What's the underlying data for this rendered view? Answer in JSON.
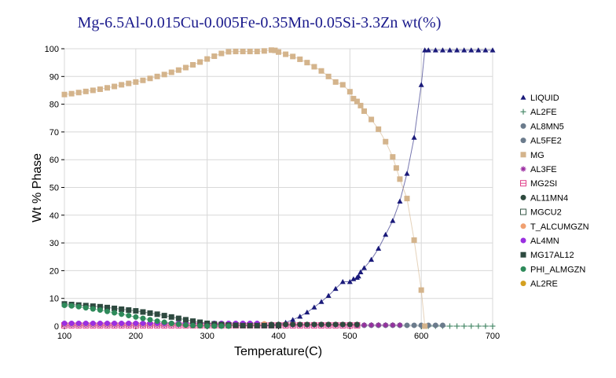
{
  "chart_data": {
    "type": "line",
    "title": "Mg-6.5Al-0.015Cu-0.005Fe-0.35Mn-0.05Si-3.3Zn wt(%)",
    "xlabel": "Temperature(C)",
    "ylabel": "Wt % Phase",
    "xlim": [
      100,
      700
    ],
    "ylim": [
      0,
      100
    ],
    "xticks": [
      100,
      200,
      300,
      400,
      500,
      600,
      700
    ],
    "yticks": [
      0,
      10,
      20,
      30,
      40,
      50,
      60,
      70,
      80,
      90,
      100
    ],
    "grid": true,
    "legend_position": "right",
    "series": [
      {
        "name": "LIQUID",
        "color": "#1a1a7a",
        "marker": "triangle",
        "x": [
          380,
          390,
          400,
          410,
          420,
          430,
          440,
          450,
          460,
          470,
          480,
          490,
          500,
          505,
          510,
          512,
          515,
          520,
          530,
          540,
          550,
          560,
          570,
          580,
          590,
          600,
          605,
          610,
          620,
          630,
          640,
          650,
          660,
          670,
          680,
          690,
          700
        ],
        "y": [
          0,
          0.3,
          0.7,
          1.3,
          2.3,
          3.5,
          5,
          6.8,
          8.8,
          11,
          13.5,
          16,
          16,
          17,
          17.5,
          18,
          19.5,
          21,
          24,
          28,
          33,
          38,
          45,
          55,
          68,
          87,
          99.5,
          99.5,
          99.5,
          99.5,
          99.5,
          99.5,
          99.5,
          99.5,
          99.5,
          99.5,
          99.5
        ]
      },
      {
        "name": "AL2FE",
        "color": "#4a8a6a",
        "marker": "plus",
        "x": [
          600,
          610,
          620,
          630,
          640,
          650,
          660,
          670,
          680,
          690,
          700
        ],
        "y": [
          0,
          0,
          0,
          0,
          0,
          0,
          0,
          0,
          0,
          0,
          0
        ]
      },
      {
        "name": "AL8MN5",
        "color": "#6b7b8c",
        "marker": "circle",
        "x": [
          510,
          520,
          530,
          540,
          550,
          560,
          570,
          580,
          590,
          600,
          610,
          620,
          630
        ],
        "y": [
          0.3,
          0.3,
          0.3,
          0.3,
          0.3,
          0.3,
          0.3,
          0.3,
          0.3,
          0.3,
          0.3,
          0.3,
          0.3
        ]
      },
      {
        "name": "AL5FE2",
        "color": "#6b7b8c",
        "marker": "circle",
        "x": [],
        "y": []
      },
      {
        "name": "MG",
        "color": "#d4b48c",
        "marker": "square",
        "x": [
          100,
          110,
          120,
          130,
          140,
          150,
          160,
          170,
          180,
          190,
          200,
          210,
          220,
          230,
          240,
          250,
          260,
          270,
          280,
          290,
          300,
          310,
          320,
          330,
          340,
          350,
          360,
          370,
          380,
          390,
          395,
          400,
          410,
          420,
          430,
          440,
          450,
          460,
          470,
          480,
          490,
          500,
          505,
          510,
          515,
          520,
          530,
          540,
          550,
          560,
          565,
          570,
          580,
          590,
          600,
          605
        ],
        "y": [
          83.5,
          83.8,
          84.2,
          84.6,
          85,
          85.4,
          85.9,
          86.4,
          87,
          87.5,
          88,
          88.6,
          89.3,
          90,
          90.7,
          91.5,
          92.3,
          93.2,
          94.2,
          95.2,
          96.3,
          97.3,
          98.3,
          98.9,
          99,
          99,
          99,
          99,
          99.2,
          99.5,
          99.4,
          98.8,
          98,
          97.2,
          96.2,
          95,
          93.5,
          92,
          90,
          88,
          87,
          84.5,
          82,
          81,
          79.5,
          77.5,
          74.5,
          71,
          66.5,
          61,
          57,
          53,
          46,
          31,
          13,
          0
        ]
      },
      {
        "name": "AL3FE",
        "color": "#9a2aa0",
        "marker": "asterisk",
        "x": [
          100,
          110,
          120,
          130,
          140,
          150,
          160,
          170,
          180,
          190,
          200,
          210,
          220,
          230,
          240,
          250,
          260,
          270,
          280,
          290,
          300,
          310,
          320,
          330,
          340,
          350,
          360,
          370,
          380,
          390,
          400,
          410,
          420,
          430,
          440,
          450,
          460,
          470,
          480,
          490,
          500,
          510,
          520,
          530,
          540,
          550,
          560,
          570
        ],
        "y": [
          0.4,
          0.4,
          0.4,
          0.4,
          0.4,
          0.4,
          0.4,
          0.4,
          0.4,
          0.4,
          0.4,
          0.4,
          0.4,
          0.4,
          0.4,
          0.4,
          0.4,
          0.4,
          0.4,
          0.4,
          0.4,
          0.4,
          0.4,
          0.4,
          0.4,
          0.4,
          0.4,
          0.4,
          0.4,
          0.4,
          0.4,
          0.4,
          0.4,
          0.4,
          0.4,
          0.4,
          0.4,
          0.4,
          0.4,
          0.4,
          0.4,
          0.4,
          0.4,
          0.4,
          0.4,
          0.4,
          0.4,
          0.4
        ]
      },
      {
        "name": "MG2SI",
        "color": "#e0408a",
        "marker": "square-open-cross",
        "x": [
          100,
          110,
          120,
          130,
          140,
          150,
          160,
          170,
          180,
          190,
          200,
          210,
          220,
          230,
          240,
          250,
          260,
          270,
          280,
          290,
          300,
          310,
          320,
          330,
          340,
          350,
          360,
          370,
          380,
          390,
          400,
          410,
          420,
          430,
          440,
          450,
          460,
          470,
          480,
          490,
          500,
          510
        ],
        "y": [
          0.3,
          0.3,
          0.3,
          0.3,
          0.3,
          0.3,
          0.3,
          0.3,
          0.3,
          0.3,
          0.3,
          0.3,
          0.3,
          0.3,
          0.3,
          0.3,
          0.3,
          0.3,
          0.3,
          0.3,
          0.3,
          0.3,
          0.3,
          0.3,
          0.3,
          0.3,
          0.3,
          0.3,
          0.3,
          0.3,
          0.3,
          0.3,
          0.3,
          0.3,
          0.3,
          0.3,
          0.3,
          0.3,
          0.3,
          0.3,
          0.3,
          0.3
        ]
      },
      {
        "name": "AL11MN4",
        "color": "#2e4a3e",
        "marker": "circle",
        "x": [
          390,
          400,
          410,
          420,
          430,
          440,
          450,
          460,
          470,
          480,
          490,
          500,
          510
        ],
        "y": [
          0.6,
          0.6,
          0.6,
          0.6,
          0.6,
          0.6,
          0.6,
          0.6,
          0.6,
          0.6,
          0.6,
          0.6,
          0.6
        ]
      },
      {
        "name": "MGCU2",
        "color": "#3a5a4a",
        "marker": "square-open",
        "x": [],
        "y": []
      },
      {
        "name": "T_ALCUMGZN",
        "color": "#f0a070",
        "marker": "circle",
        "x": [
          100,
          110,
          120,
          130,
          140,
          150,
          160,
          170,
          180,
          190,
          200,
          210,
          220,
          230,
          240,
          250,
          260,
          270,
          280,
          290,
          300,
          310,
          320,
          330,
          340,
          350,
          360,
          370,
          380
        ],
        "y": [
          0.8,
          0.8,
          0.8,
          0.8,
          0.8,
          0.8,
          0.8,
          0.8,
          0.8,
          0.8,
          0.8,
          0.8,
          0.8,
          0.8,
          0.8,
          0.8,
          0.8,
          0.8,
          0.8,
          0.8,
          0.8,
          0.8,
          0.8,
          0.8,
          0.8,
          0.8,
          0.8,
          0.8,
          0.8
        ]
      },
      {
        "name": "AL4MN",
        "color": "#9a30e0",
        "marker": "circle",
        "x": [
          100,
          110,
          120,
          130,
          140,
          150,
          160,
          170,
          180,
          190,
          200,
          210,
          220,
          230,
          240,
          250,
          260,
          270,
          280,
          290,
          300,
          310,
          320,
          330,
          340,
          350,
          360,
          370
        ],
        "y": [
          1,
          1,
          1,
          1,
          1,
          1,
          1,
          1,
          1,
          1,
          1,
          1,
          1,
          1,
          1,
          1,
          1,
          1,
          1,
          1,
          1,
          1,
          1,
          1,
          1,
          1,
          1,
          1
        ]
      },
      {
        "name": "MG17AL12",
        "color": "#2e4a40",
        "marker": "square",
        "x": [
          100,
          110,
          120,
          130,
          140,
          150,
          160,
          170,
          180,
          190,
          200,
          210,
          220,
          230,
          240,
          250,
          260,
          270,
          280,
          290,
          300,
          310,
          320,
          330,
          340,
          350,
          360,
          370,
          380,
          390,
          400
        ],
        "y": [
          8,
          7.8,
          7.6,
          7.4,
          7.2,
          7,
          6.7,
          6.4,
          6.1,
          5.8,
          5.5,
          5.1,
          4.7,
          4.3,
          3.8,
          3.3,
          2.8,
          2.3,
          1.8,
          1.4,
          1,
          0.8,
          0.6,
          0.4,
          0.3,
          0.2,
          0.2,
          0.2,
          0.2,
          0.2,
          0.2
        ]
      },
      {
        "name": "PHI_ALMGZN",
        "color": "#2e8a5a",
        "marker": "circle",
        "x": [
          100,
          110,
          120,
          130,
          140,
          150,
          160,
          170,
          180,
          190,
          200,
          210,
          220,
          230,
          240,
          250,
          260,
          270,
          280,
          290,
          300,
          310,
          320,
          330
        ],
        "y": [
          7.5,
          7.3,
          7,
          6.6,
          6.2,
          5.8,
          5.3,
          4.8,
          4.3,
          3.8,
          3.3,
          2.8,
          2.3,
          1.8,
          1.4,
          1,
          0.7,
          0.4,
          0.2,
          0.1,
          0,
          0,
          0,
          0
        ]
      },
      {
        "name": "AL2RE",
        "color": "#d4a020",
        "marker": "circle",
        "x": [],
        "y": []
      }
    ]
  }
}
